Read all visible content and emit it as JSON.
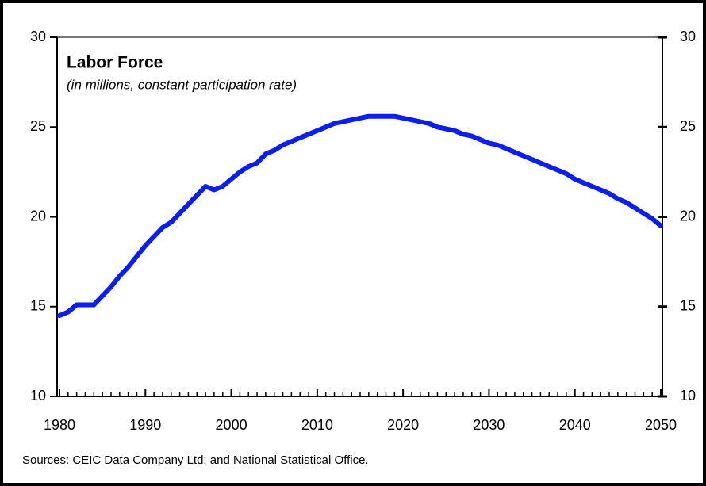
{
  "chart_data": {
    "type": "line",
    "title": "Labor Force",
    "subtitle": "(in millions, constant participation rate)",
    "source": "Sources: CEIC Data Company Ltd; and National Statistical Office.",
    "x": [
      1980,
      1981,
      1982,
      1983,
      1984,
      1985,
      1986,
      1987,
      1988,
      1989,
      1990,
      1991,
      1992,
      1993,
      1994,
      1995,
      1996,
      1997,
      1998,
      1999,
      2000,
      2001,
      2002,
      2003,
      2004,
      2005,
      2006,
      2007,
      2008,
      2009,
      2010,
      2011,
      2012,
      2013,
      2014,
      2015,
      2016,
      2017,
      2018,
      2019,
      2020,
      2021,
      2022,
      2023,
      2024,
      2025,
      2026,
      2027,
      2028,
      2029,
      2030,
      2031,
      2032,
      2033,
      2034,
      2035,
      2036,
      2037,
      2038,
      2039,
      2040,
      2041,
      2042,
      2043,
      2044,
      2045,
      2046,
      2047,
      2048,
      2049,
      2050
    ],
    "values": [
      14.5,
      14.7,
      15.1,
      15.1,
      15.1,
      15.6,
      16.1,
      16.7,
      17.2,
      17.8,
      18.4,
      18.9,
      19.4,
      19.7,
      20.2,
      20.7,
      21.2,
      21.7,
      21.5,
      21.7,
      22.1,
      22.5,
      22.8,
      23.0,
      23.5,
      23.7,
      24.0,
      24.2,
      24.4,
      24.6,
      24.8,
      25.0,
      25.2,
      25.3,
      25.4,
      25.5,
      25.6,
      25.6,
      25.6,
      25.6,
      25.5,
      25.4,
      25.3,
      25.2,
      25.0,
      24.9,
      24.8,
      24.6,
      24.5,
      24.3,
      24.1,
      24.0,
      23.8,
      23.6,
      23.4,
      23.2,
      23.0,
      22.8,
      22.6,
      22.4,
      22.1,
      21.9,
      21.7,
      21.5,
      21.3,
      21.0,
      20.8,
      20.5,
      20.2,
      19.9,
      19.5
    ],
    "color": "#0a1ef0",
    "xlim": [
      1980,
      2050
    ],
    "xticks": [
      1980,
      1990,
      2000,
      2010,
      2020,
      2030,
      2040,
      2050
    ],
    "ylim": [
      10,
      30
    ],
    "yticks": [
      10,
      15,
      20,
      25,
      30
    ],
    "y2lim": [
      10,
      30
    ],
    "y2ticks": [
      10,
      15,
      20,
      25,
      30
    ]
  }
}
